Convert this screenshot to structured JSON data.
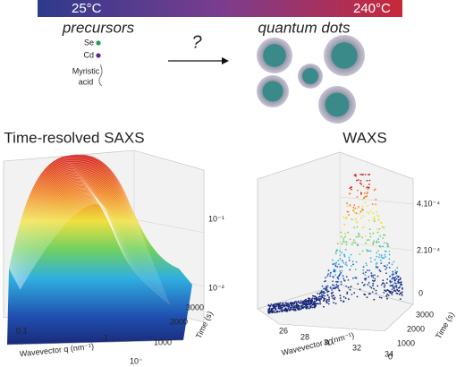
{
  "header": {
    "temp_start": "25°C",
    "temp_end": "240°C"
  },
  "precursors": {
    "title": "precursors",
    "se": "Se",
    "cd": "Cd",
    "acid_line1": "Myristic",
    "acid_line2": "acid"
  },
  "question": "?",
  "quantum_dots": "quantum dots",
  "saxs": {
    "title": "Time-resolved SAXS",
    "x_ticks": [
      "0.1",
      "1"
    ],
    "x_label": "Wavevector q (nm⁻¹)",
    "z_ticks": [
      "10⁻¹",
      "10⁻²"
    ],
    "t_ticks": [
      "3000",
      "2000",
      "1000"
    ],
    "corner": "10⁻",
    "t_label": "Time (s)"
  },
  "waxs": {
    "title": "WAXS",
    "z_ticks": [
      "4.10⁻⁴",
      "2.10⁻⁴",
      "0"
    ],
    "x_ticks": [
      "26",
      "28",
      "30",
      "32",
      "34"
    ],
    "x_label": "Wavevector q (nm⁻¹)",
    "t_ticks": [
      "3000",
      "2000",
      "1000",
      "0"
    ],
    "t_label": "Time (s)"
  }
}
